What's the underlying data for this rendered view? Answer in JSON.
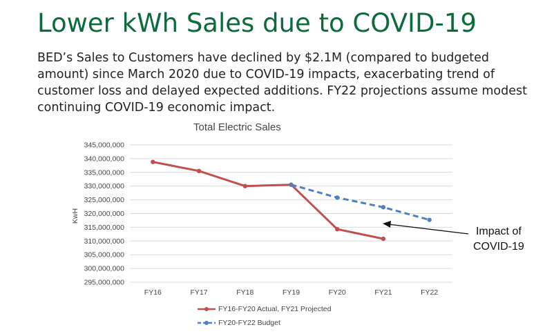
{
  "slide": {
    "title": "Lower kWh Sales due to COVID-19",
    "body_lines": [
      "BED’s Sales to Customers have declined by $2.1M (compared to budgeted",
      "amount) since March 2020 due to COVID-19 impacts, exacerbating trend of",
      "customer loss and delayed expected additions. FY22 projections assume modest",
      "continuing COVID-19 economic impact."
    ]
  },
  "annotation": {
    "lines": [
      "Impact of",
      "COVID-19"
    ]
  },
  "chart_data": {
    "type": "line",
    "title": "Total Electric Sales",
    "ylabel": "KwH",
    "xlabel": "",
    "categories": [
      "FY16",
      "FY17",
      "FY18",
      "FY19",
      "FY20",
      "FY21",
      "FY22"
    ],
    "ylim": [
      295000000,
      345000000
    ],
    "ytick_step": 5000000,
    "ytick_labels": [
      "345,000,000",
      "340,000,000",
      "335,000,000",
      "330,000,000",
      "325,000,000",
      "320,000,000",
      "315,000,000",
      "310,000,000",
      "305,000,000",
      "300,000,000",
      "295,000,000"
    ],
    "grid": true,
    "legend_position": "bottom",
    "series": [
      {
        "name": "FY16-FY20 Actual, FY21 Projected",
        "color": "#c0504d",
        "dash": "solid",
        "values": [
          338800000,
          335500000,
          330000000,
          330500000,
          314300000,
          310800000,
          null
        ]
      },
      {
        "name": "FY20-FY22 Budget",
        "color": "#4f81bd",
        "dash": "dashed",
        "values": [
          null,
          null,
          null,
          330500000,
          325800000,
          322300000,
          317700000
        ]
      }
    ]
  }
}
